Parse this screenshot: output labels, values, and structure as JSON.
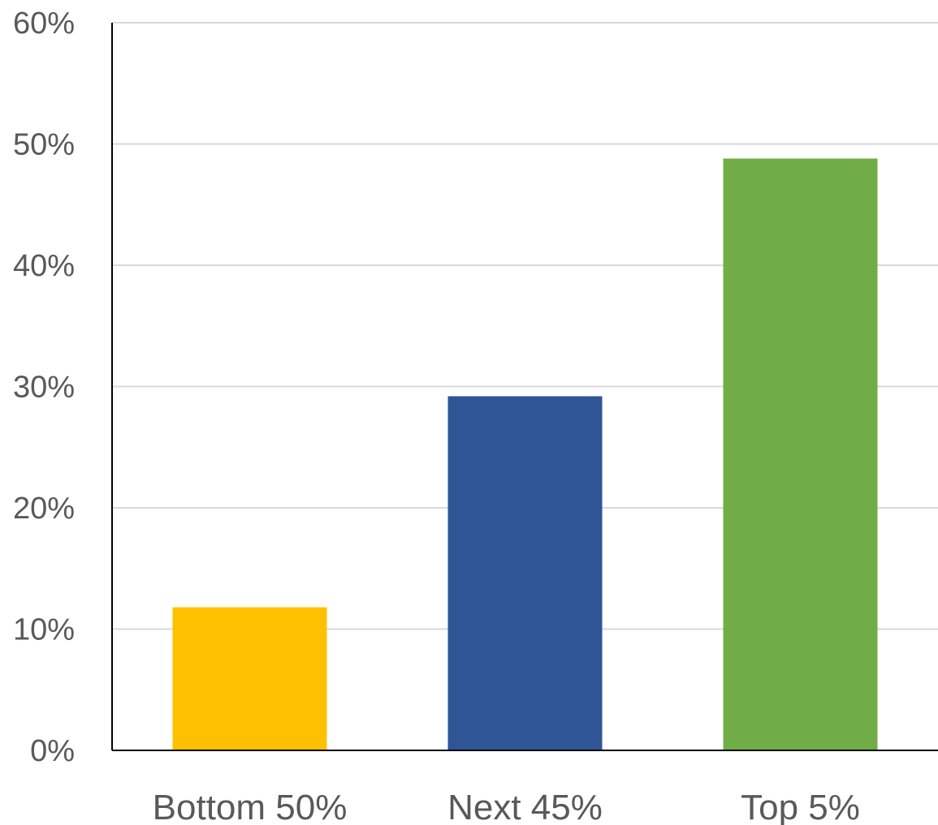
{
  "chart_data": {
    "type": "bar",
    "title": "",
    "xlabel": "",
    "ylabel": "",
    "categories": [
      "Bottom 50%",
      "Next 45%",
      "Top 5%"
    ],
    "values": [
      11.8,
      29.2,
      48.8
    ],
    "colors": [
      "#FFC000",
      "#2F5597",
      "#70AD47"
    ],
    "ylim": [
      0,
      60
    ],
    "yticks": [
      0,
      10,
      20,
      30,
      40,
      50,
      60
    ],
    "ytick_labels": [
      "0%",
      "10%",
      "20%",
      "30%",
      "40%",
      "50%",
      "60%"
    ],
    "grid": true,
    "legend": "none"
  }
}
